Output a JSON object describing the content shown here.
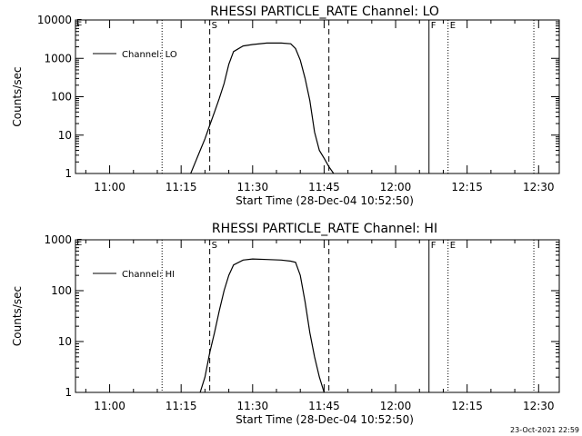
{
  "chart_data": [
    {
      "type": "line",
      "title": "RHESSI PARTICLE_RATE Channel: LO",
      "xlabel": "Start Time (28-Dec-04 10:52:50)",
      "ylabel": "Counts/sec",
      "yscale": "log",
      "ylim": [
        1,
        10000
      ],
      "yticks": [
        {
          "value": 1,
          "label": "1"
        },
        {
          "value": 10,
          "label": "10"
        },
        {
          "value": 100,
          "label": "100"
        },
        {
          "value": 1000,
          "label": "1000"
        },
        {
          "value": 10000,
          "label": "10000"
        }
      ],
      "xlim": [
        "10:52:50",
        "12:34:20"
      ],
      "xticks": [
        "11:00",
        "11:15",
        "11:30",
        "11:45",
        "12:00",
        "12:15",
        "12:30"
      ],
      "legend": {
        "position": "top-left",
        "entries": [
          "Channel: LO"
        ]
      },
      "markers": [
        {
          "time": "11:11",
          "style": "dotted",
          "label": ""
        },
        {
          "time": "11:21",
          "style": "dashed",
          "label": "S"
        },
        {
          "time": "11:46",
          "style": "dashed",
          "label": ""
        },
        {
          "time": "12:07",
          "style": "solid",
          "label": "F"
        },
        {
          "time": "12:11",
          "style": "dotted",
          "label": "E"
        },
        {
          "time": "12:29",
          "style": "dotted",
          "label": ""
        }
      ],
      "series": [
        {
          "name": "Channel: LO",
          "x": [
            "11:17",
            "11:18",
            "11:19",
            "11:20",
            "11:21",
            "11:22",
            "11:23",
            "11:24",
            "11:25",
            "11:26",
            "11:28",
            "11:30",
            "11:33",
            "11:36",
            "11:38",
            "11:39",
            "11:40",
            "11:41",
            "11:42",
            "11:43",
            "11:44",
            "11:45",
            "11:46",
            "11:47"
          ],
          "y": [
            1,
            2,
            4,
            8,
            18,
            40,
            90,
            220,
            700,
            1500,
            2100,
            2300,
            2500,
            2500,
            2400,
            1800,
            900,
            300,
            80,
            12,
            4,
            2.5,
            1.5,
            1
          ]
        }
      ]
    },
    {
      "type": "line",
      "title": "RHESSI PARTICLE_RATE Channel: HI",
      "xlabel": "Start Time (28-Dec-04 10:52:50)",
      "ylabel": "Counts/sec",
      "yscale": "log",
      "ylim": [
        1,
        1000
      ],
      "yticks": [
        {
          "value": 1,
          "label": "1"
        },
        {
          "value": 10,
          "label": "10"
        },
        {
          "value": 100,
          "label": "100"
        },
        {
          "value": 1000,
          "label": "1000"
        }
      ],
      "xlim": [
        "10:52:50",
        "12:34:20"
      ],
      "xticks": [
        "11:00",
        "11:15",
        "11:30",
        "11:45",
        "12:00",
        "12:15",
        "12:30"
      ],
      "legend": {
        "position": "top-left",
        "entries": [
          "Channel: HI"
        ]
      },
      "markers": [
        {
          "time": "11:11",
          "style": "dotted",
          "label": ""
        },
        {
          "time": "11:21",
          "style": "dashed",
          "label": "S"
        },
        {
          "time": "11:46",
          "style": "dashed",
          "label": ""
        },
        {
          "time": "12:07",
          "style": "solid",
          "label": "F"
        },
        {
          "time": "12:11",
          "style": "dotted",
          "label": "E"
        },
        {
          "time": "12:29",
          "style": "dotted",
          "label": ""
        }
      ],
      "series": [
        {
          "name": "Channel: HI",
          "x": [
            "11:19",
            "11:20",
            "11:21",
            "11:22",
            "11:23",
            "11:24",
            "11:25",
            "11:26",
            "11:28",
            "11:30",
            "11:33",
            "11:36",
            "11:38",
            "11:39",
            "11:40",
            "11:41",
            "11:42",
            "11:43",
            "11:44",
            "11:45"
          ],
          "y": [
            1,
            2,
            6,
            15,
            40,
            100,
            200,
            320,
            400,
            420,
            410,
            400,
            380,
            360,
            200,
            60,
            15,
            5,
            2,
            1
          ]
        }
      ]
    }
  ],
  "extra_marks": [
    {
      "panel": 0,
      "label": "E"
    },
    {
      "panel": 1,
      "label": "E"
    }
  ],
  "timestamp": "23-Oct-2021 22:59"
}
